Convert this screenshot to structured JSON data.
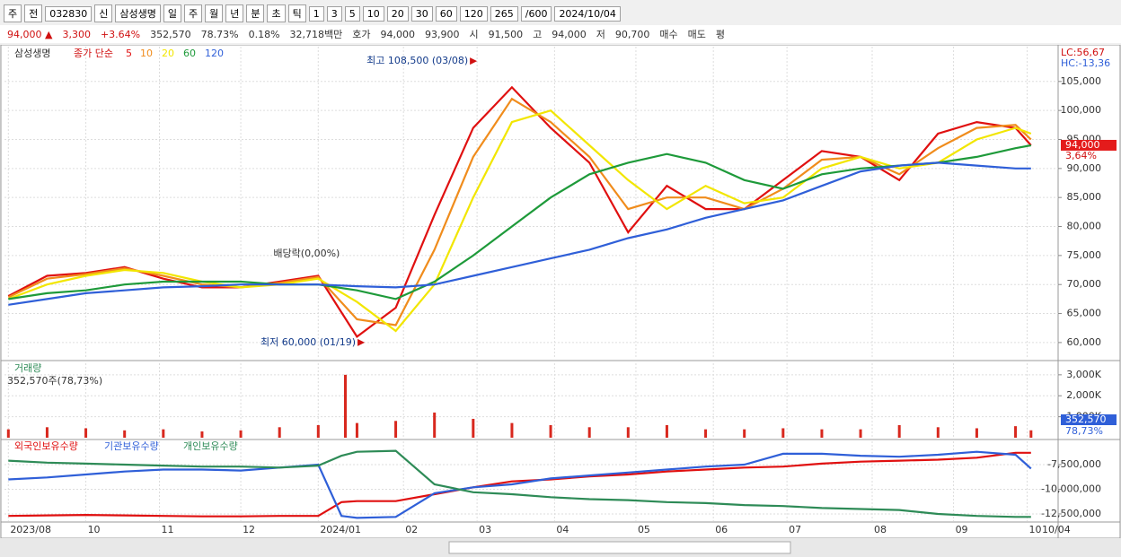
{
  "toolbar": {
    "items": [
      "주",
      "전",
      "032830",
      "신",
      "삼성생명",
      "일",
      "주",
      "월",
      "년",
      "분",
      "초",
      "틱",
      "1",
      "3",
      "5",
      "10",
      "20",
      "30",
      "60",
      "120",
      "265",
      "/600",
      "2024/10/04"
    ]
  },
  "infobar": {
    "items": [
      "94,000 ▲",
      "3,300",
      "+3.64%",
      "352,570",
      "78.73%",
      "0.18%",
      "32,718백만",
      "호가",
      "94,000",
      "93,900",
      "시",
      "91,500",
      "고",
      "94,000",
      "저",
      "90,700",
      "매수",
      "매도",
      "평"
    ]
  },
  "chart_data": [
    {
      "type": "line",
      "title": "삼성생명",
      "legend_title": "종가 단순",
      "xlim": [
        -1,
        271
      ],
      "x": [
        0,
        10,
        20,
        30,
        40,
        50,
        60,
        70,
        80,
        90,
        100,
        110,
        120,
        130,
        140,
        150,
        160,
        170,
        180,
        190,
        200,
        210,
        220,
        230,
        240,
        250,
        260,
        264
      ],
      "xticks": [
        {
          "value": 0,
          "label": "2023/08"
        },
        {
          "value": 20,
          "label": "10"
        },
        {
          "value": 39,
          "label": "11"
        },
        {
          "value": 60,
          "label": "12"
        },
        {
          "value": 80,
          "label": "2024/01"
        },
        {
          "value": 102,
          "label": "02"
        },
        {
          "value": 121,
          "label": "03"
        },
        {
          "value": 141,
          "label": "04"
        },
        {
          "value": 162,
          "label": "05"
        },
        {
          "value": 182,
          "label": "06"
        },
        {
          "value": 201,
          "label": "07"
        },
        {
          "value": 223,
          "label": "08"
        },
        {
          "value": 244,
          "label": "09"
        },
        {
          "value": 263,
          "label": "10"
        }
      ],
      "x_end_label": "10/04",
      "ylim": [
        57200,
        111000
      ],
      "yticks": [
        {
          "value": 60000,
          "label": "60,000"
        },
        {
          "value": 65000,
          "label": "65,000"
        },
        {
          "value": 70000,
          "label": "70,000"
        },
        {
          "value": 75000,
          "label": "75,000"
        },
        {
          "value": 80000,
          "label": "80,000"
        },
        {
          "value": 85000,
          "label": "85,000"
        },
        {
          "value": 90000,
          "label": "90,000"
        },
        {
          "value": 95000,
          "label": "95,000"
        },
        {
          "value": 100000,
          "label": "100,000"
        },
        {
          "value": 105000,
          "label": "105,000"
        }
      ],
      "grid": true,
      "series": [
        {
          "name": "5",
          "color": "#e01010",
          "values": [
            68000,
            71500,
            72000,
            73000,
            71000,
            69500,
            69500,
            70500,
            71500,
            61000,
            66000,
            82000,
            97000,
            104000,
            97000,
            91000,
            79000,
            87000,
            83000,
            83000,
            88000,
            93000,
            92000,
            88000,
            96000,
            98000,
            97000,
            94000
          ]
        },
        {
          "name": "10",
          "color": "#f08c1c",
          "values": [
            67800,
            71000,
            71800,
            72800,
            71500,
            70000,
            69500,
            70300,
            71300,
            64000,
            63000,
            76000,
            92000,
            102000,
            98000,
            92000,
            83000,
            85000,
            85000,
            83000,
            86500,
            91500,
            92000,
            89000,
            93500,
            97000,
            97500,
            95000
          ]
        },
        {
          "name": "20",
          "color": "#f2e600",
          "values": [
            67500,
            70000,
            71500,
            72500,
            72000,
            70500,
            69500,
            70000,
            71000,
            67000,
            62000,
            70000,
            85000,
            98000,
            100000,
            94000,
            88000,
            83000,
            87000,
            84000,
            85000,
            90000,
            92000,
            90000,
            91000,
            95000,
            97000,
            96000
          ]
        },
        {
          "name": "60",
          "color": "#1e9a3a",
          "values": [
            67500,
            68500,
            69000,
            70000,
            70500,
            70500,
            70500,
            70000,
            70000,
            69000,
            67500,
            70500,
            75000,
            80000,
            85000,
            89000,
            91000,
            92500,
            91000,
            88000,
            86500,
            89000,
            90000,
            90500,
            91000,
            92000,
            93500,
            94000
          ]
        },
        {
          "name": "120",
          "color": "#2f5fd8",
          "values": [
            66500,
            67500,
            68500,
            69000,
            69500,
            69700,
            70000,
            70000,
            70000,
            69700,
            69500,
            70000,
            71500,
            73000,
            74500,
            76000,
            78000,
            79500,
            81500,
            83000,
            84500,
            87000,
            89500,
            90500,
            91000,
            90500,
            90000,
            90000
          ]
        }
      ],
      "annotations": [
        {
          "text": "최고 108,500 (03/08)",
          "x": 121,
          "value": 108500
        },
        {
          "text": "최저 60,000 (01/19)",
          "x": 92,
          "value": 60000
        },
        {
          "text": "배당락(0,00%)",
          "x": 77
        }
      ],
      "last_price": {
        "value": 94000,
        "label": "94,000"
      },
      "change_label": "3,64%",
      "lc_label": "LC:56,67",
      "hc_label": "HC:-13,36"
    },
    {
      "type": "bar",
      "title": "거래량",
      "subtitle": "352,570주(78,73%)",
      "color": "#d8281e",
      "xlim": [
        -1,
        271
      ],
      "x": [
        0,
        10,
        20,
        30,
        40,
        50,
        60,
        70,
        80,
        87,
        90,
        100,
        110,
        120,
        130,
        140,
        150,
        160,
        170,
        180,
        190,
        200,
        210,
        220,
        230,
        240,
        250,
        260,
        264
      ],
      "values": [
        400000,
        500000,
        450000,
        350000,
        400000,
        300000,
        350000,
        500000,
        600000,
        3000000,
        700000,
        800000,
        1200000,
        900000,
        700000,
        600000,
        500000,
        500000,
        600000,
        400000,
        400000,
        450000,
        400000,
        400000,
        600000,
        500000,
        450000,
        550000,
        352570
      ],
      "ylim": [
        0,
        3550000
      ],
      "yticks": [
        {
          "value": 1000000,
          "label": "1,000K"
        },
        {
          "value": 2000000,
          "label": "2,000K"
        },
        {
          "value": 3000000,
          "label": "3,000K"
        }
      ],
      "grid": true,
      "last_label": "352,570",
      "ratio_label": "78,73%"
    },
    {
      "type": "line",
      "xlim": [
        -1,
        271
      ],
      "x": [
        0,
        10,
        20,
        30,
        40,
        50,
        60,
        70,
        80,
        86,
        90,
        100,
        110,
        120,
        130,
        140,
        150,
        160,
        170,
        180,
        190,
        200,
        210,
        220,
        230,
        240,
        250,
        260,
        264
      ],
      "ylim": [
        -13230000,
        -5140000
      ],
      "yticks": [
        {
          "value": -12500000,
          "label": "-12,500,000"
        },
        {
          "value": -10000000,
          "label": "-10,000,000"
        },
        {
          "value": -7500000,
          "label": "-7,500,000"
        }
      ],
      "grid": true,
      "series": [
        {
          "name": "외국인보유수량",
          "color": "#e01010",
          "values": [
            -12700000,
            -12650000,
            -12600000,
            -12650000,
            -12700000,
            -12750000,
            -12750000,
            -12700000,
            -12700000,
            -11300000,
            -11200000,
            -11200000,
            -10500000,
            -9800000,
            -9200000,
            -9000000,
            -8700000,
            -8500000,
            -8200000,
            -8000000,
            -7800000,
            -7700000,
            -7400000,
            -7200000,
            -7100000,
            -7000000,
            -6800000,
            -6300000,
            -6300000
          ]
        },
        {
          "name": "기관보유수량",
          "color": "#2f5fd8",
          "values": [
            -9000000,
            -8800000,
            -8500000,
            -8200000,
            -8000000,
            -8000000,
            -8100000,
            -7800000,
            -7500000,
            -12700000,
            -12900000,
            -12800000,
            -10400000,
            -9800000,
            -9500000,
            -8900000,
            -8600000,
            -8300000,
            -8000000,
            -7700000,
            -7500000,
            -6400000,
            -6400000,
            -6600000,
            -6700000,
            -6500000,
            -6200000,
            -6500000,
            -7900000
          ]
        },
        {
          "name": "개인보유수량",
          "color": "#2e8b57",
          "values": [
            -7100000,
            -7300000,
            -7400000,
            -7500000,
            -7600000,
            -7700000,
            -7700000,
            -7800000,
            -7600000,
            -6600000,
            -6200000,
            -6100000,
            -9500000,
            -10300000,
            -10500000,
            -10800000,
            -11000000,
            -11100000,
            -11300000,
            -11400000,
            -11600000,
            -11700000,
            -11900000,
            -12000000,
            -12100000,
            -12500000,
            -12700000,
            -12800000,
            -12800000
          ]
        }
      ]
    }
  ]
}
